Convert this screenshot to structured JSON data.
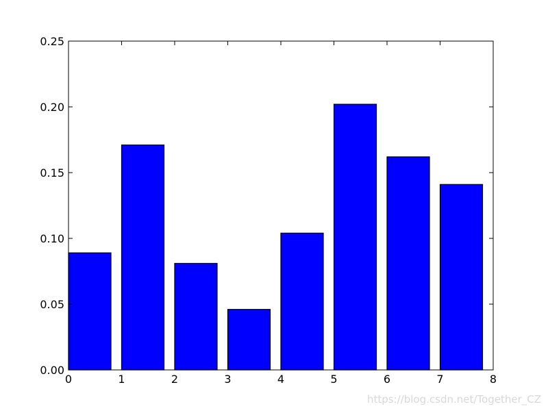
{
  "chart_data": {
    "type": "bar",
    "x": [
      0,
      1,
      2,
      3,
      4,
      5,
      6,
      7
    ],
    "bar_width": 0.8,
    "values": [
      0.089,
      0.171,
      0.081,
      0.046,
      0.104,
      0.202,
      0.162,
      0.141
    ],
    "xlim": [
      0,
      8
    ],
    "ylim": [
      0,
      0.25
    ],
    "xticks": [
      0,
      1,
      2,
      3,
      4,
      5,
      6,
      7,
      8
    ],
    "xtick_labels": [
      "0",
      "1",
      "2",
      "3",
      "4",
      "5",
      "6",
      "7",
      "8"
    ],
    "yticks": [
      0,
      0.05,
      0.1,
      0.15,
      0.2,
      0.25
    ],
    "ytick_labels": [
      "0.00",
      "0.05",
      "0.10",
      "0.15",
      "0.20",
      "0.25"
    ],
    "title": "",
    "xlabel": "",
    "ylabel": "",
    "grid": false,
    "bar_color": "#0000ff",
    "edge_color": "#000000"
  },
  "watermark": "https://blog.csdn.net/Together_CZ"
}
